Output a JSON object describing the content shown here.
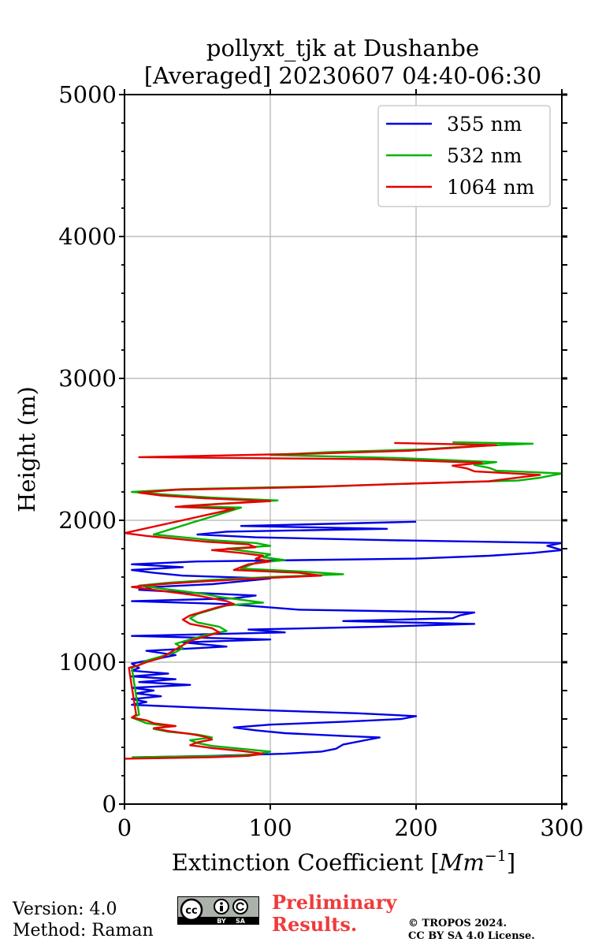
{
  "chart_data": {
    "type": "line",
    "title": "pollyxt_tjk at Dushanbe",
    "subtitle": "[Averaged] 20230607 04:40-06:30",
    "xlabel": "Extinction Coefficient [",
    "xlabel_unit": "Mm",
    "xlabel_exp": "−1",
    "xlabel_end": "]",
    "ylabel": "Height (m)",
    "xlim": [
      0,
      300
    ],
    "ylim": [
      0,
      5000
    ],
    "xticks": [
      0,
      100,
      200,
      300
    ],
    "yticks": [
      0,
      1000,
      2000,
      3000,
      4000,
      5000
    ],
    "xtick_labels": [
      "0",
      "100",
      "200",
      "300"
    ],
    "ytick_labels": [
      "0",
      "1000",
      "2000",
      "3000",
      "4000",
      "5000"
    ],
    "grid": true,
    "legend_position": "top-right",
    "series": [
      {
        "name": "355 nm",
        "color": "#0000e6",
        "points": [
          [
            10,
            330
          ],
          [
            60,
            340
          ],
          [
            110,
            355
          ],
          [
            135,
            370
          ],
          [
            145,
            390
          ],
          [
            150,
            420
          ],
          [
            165,
            450
          ],
          [
            175,
            470
          ],
          [
            150,
            480
          ],
          [
            110,
            500
          ],
          [
            90,
            520
          ],
          [
            75,
            540
          ],
          [
            100,
            560
          ],
          [
            150,
            580
          ],
          [
            190,
            600
          ],
          [
            200,
            620
          ],
          [
            160,
            640
          ],
          [
            100,
            660
          ],
          [
            50,
            680
          ],
          [
            5,
            700
          ],
          [
            15,
            720
          ],
          [
            5,
            740
          ],
          [
            25,
            760
          ],
          [
            8,
            780
          ],
          [
            20,
            800
          ],
          [
            5,
            820
          ],
          [
            45,
            840
          ],
          [
            10,
            860
          ],
          [
            35,
            880
          ],
          [
            5,
            900
          ],
          [
            30,
            920
          ],
          [
            5,
            940
          ],
          [
            10,
            960
          ],
          [
            5,
            990
          ],
          [
            20,
            1020
          ],
          [
            35,
            1050
          ],
          [
            15,
            1080
          ],
          [
            70,
            1110
          ],
          [
            40,
            1140
          ],
          [
            100,
            1160
          ],
          [
            5,
            1185
          ],
          [
            110,
            1210
          ],
          [
            85,
            1230
          ],
          [
            175,
            1250
          ],
          [
            240,
            1270
          ],
          [
            150,
            1290
          ],
          [
            225,
            1310
          ],
          [
            230,
            1330
          ],
          [
            240,
            1350
          ],
          [
            120,
            1370
          ],
          [
            95,
            1390
          ],
          [
            70,
            1410
          ],
          [
            5,
            1430
          ],
          [
            75,
            1450
          ],
          [
            90,
            1470
          ],
          [
            45,
            1490
          ],
          [
            10,
            1510
          ],
          [
            20,
            1530
          ],
          [
            60,
            1550
          ],
          [
            80,
            1570
          ],
          [
            100,
            1590
          ],
          [
            40,
            1610
          ],
          [
            20,
            1630
          ],
          [
            5,
            1650
          ],
          [
            40,
            1670
          ],
          [
            5,
            1690
          ],
          [
            50,
            1710
          ],
          [
            200,
            1730
          ],
          [
            250,
            1750
          ],
          [
            280,
            1770
          ],
          [
            300,
            1790
          ],
          [
            290,
            1820
          ],
          [
            300,
            1840
          ],
          [
            180,
            1860
          ],
          [
            90,
            1880
          ],
          [
            50,
            1900
          ],
          [
            70,
            1920
          ],
          [
            180,
            1940
          ],
          [
            80,
            1960
          ],
          [
            140,
            1975
          ],
          [
            200,
            1990
          ]
        ]
      },
      {
        "name": "532 nm",
        "color": "#00b300",
        "points": [
          [
            5,
            330
          ],
          [
            70,
            340
          ],
          [
            90,
            350
          ],
          [
            100,
            370
          ],
          [
            80,
            390
          ],
          [
            60,
            410
          ],
          [
            50,
            430
          ],
          [
            45,
            450
          ],
          [
            60,
            470
          ],
          [
            50,
            490
          ],
          [
            30,
            510
          ],
          [
            20,
            530
          ],
          [
            30,
            550
          ],
          [
            15,
            570
          ],
          [
            10,
            590
          ],
          [
            5,
            610
          ],
          [
            10,
            630
          ],
          [
            5,
            960
          ],
          [
            10,
            980
          ],
          [
            15,
            1010
          ],
          [
            25,
            1040
          ],
          [
            35,
            1070
          ],
          [
            40,
            1100
          ],
          [
            35,
            1130
          ],
          [
            45,
            1160
          ],
          [
            55,
            1190
          ],
          [
            70,
            1220
          ],
          [
            65,
            1250
          ],
          [
            50,
            1280
          ],
          [
            45,
            1310
          ],
          [
            50,
            1340
          ],
          [
            60,
            1370
          ],
          [
            70,
            1400
          ],
          [
            95,
            1420
          ],
          [
            80,
            1440
          ],
          [
            65,
            1460
          ],
          [
            55,
            1480
          ],
          [
            40,
            1500
          ],
          [
            25,
            1520
          ],
          [
            10,
            1540
          ],
          [
            30,
            1560
          ],
          [
            60,
            1580
          ],
          [
            100,
            1600
          ],
          [
            150,
            1620
          ],
          [
            120,
            1640
          ],
          [
            80,
            1660
          ],
          [
            85,
            1680
          ],
          [
            90,
            1700
          ],
          [
            110,
            1720
          ],
          [
            95,
            1740
          ],
          [
            100,
            1760
          ],
          [
            85,
            1780
          ],
          [
            70,
            1800
          ],
          [
            100,
            1820
          ],
          [
            90,
            1840
          ],
          [
            60,
            1860
          ],
          [
            40,
            1880
          ],
          [
            20,
            1900
          ],
          [
            80,
            2090
          ],
          [
            40,
            2100
          ],
          [
            70,
            2120
          ],
          [
            105,
            2140
          ],
          [
            60,
            2160
          ],
          [
            30,
            2180
          ],
          [
            5,
            2200
          ],
          [
            40,
            2220
          ],
          [
            140,
            2240
          ],
          [
            200,
            2260
          ],
          [
            270,
            2280
          ],
          [
            285,
            2300
          ],
          [
            300,
            2330
          ],
          [
            255,
            2350
          ],
          [
            250,
            2370
          ],
          [
            240,
            2390
          ],
          [
            255,
            2410
          ],
          [
            185,
            2440
          ],
          [
            100,
            2460
          ],
          [
            140,
            2480
          ],
          [
            205,
            2500
          ],
          [
            235,
            2520
          ],
          [
            280,
            2540
          ],
          [
            225,
            2550
          ]
        ]
      },
      {
        "name": "1064 nm",
        "color": "#e60000",
        "points": [
          [
            0,
            320
          ],
          [
            60,
            330
          ],
          [
            85,
            340
          ],
          [
            95,
            355
          ],
          [
            80,
            375
          ],
          [
            60,
            395
          ],
          [
            45,
            415
          ],
          [
            50,
            435
          ],
          [
            60,
            455
          ],
          [
            55,
            475
          ],
          [
            45,
            495
          ],
          [
            30,
            515
          ],
          [
            20,
            535
          ],
          [
            35,
            550
          ],
          [
            20,
            570
          ],
          [
            15,
            590
          ],
          [
            5,
            610
          ],
          [
            8,
            630
          ],
          [
            3,
            960
          ],
          [
            10,
            980
          ],
          [
            15,
            1000
          ],
          [
            25,
            1030
          ],
          [
            30,
            1060
          ],
          [
            35,
            1090
          ],
          [
            40,
            1120
          ],
          [
            45,
            1150
          ],
          [
            55,
            1180
          ],
          [
            65,
            1210
          ],
          [
            60,
            1240
          ],
          [
            45,
            1270
          ],
          [
            40,
            1300
          ],
          [
            45,
            1330
          ],
          [
            55,
            1360
          ],
          [
            65,
            1390
          ],
          [
            75,
            1410
          ],
          [
            70,
            1430
          ],
          [
            60,
            1450
          ],
          [
            50,
            1470
          ],
          [
            35,
            1490
          ],
          [
            20,
            1510
          ],
          [
            5,
            1530
          ],
          [
            25,
            1550
          ],
          [
            55,
            1570
          ],
          [
            90,
            1590
          ],
          [
            135,
            1610
          ],
          [
            120,
            1630
          ],
          [
            75,
            1650
          ],
          [
            80,
            1670
          ],
          [
            85,
            1690
          ],
          [
            100,
            1710
          ],
          [
            90,
            1730
          ],
          [
            95,
            1750
          ],
          [
            80,
            1770
          ],
          [
            60,
            1790
          ],
          [
            90,
            1810
          ],
          [
            85,
            1830
          ],
          [
            55,
            1850
          ],
          [
            35,
            1870
          ],
          [
            15,
            1890
          ],
          [
            0,
            1910
          ],
          [
            75,
            2080
          ],
          [
            35,
            2095
          ],
          [
            65,
            2115
          ],
          [
            100,
            2135
          ],
          [
            55,
            2155
          ],
          [
            25,
            2175
          ],
          [
            10,
            2195
          ],
          [
            35,
            2215
          ],
          [
            130,
            2235
          ],
          [
            185,
            2255
          ],
          [
            250,
            2275
          ],
          [
            265,
            2295
          ],
          [
            285,
            2320
          ],
          [
            240,
            2345
          ],
          [
            235,
            2365
          ],
          [
            225,
            2385
          ],
          [
            245,
            2405
          ],
          [
            175,
            2430
          ],
          [
            10,
            2445
          ],
          [
            130,
            2470
          ],
          [
            195,
            2490
          ],
          [
            225,
            2510
          ],
          [
            255,
            2530
          ],
          [
            185,
            2545
          ]
        ]
      }
    ]
  },
  "footer": {
    "version": "Version: 4.0",
    "method": "Method: Raman",
    "preliminary_line1": "Preliminary",
    "preliminary_line2": "Results.",
    "copyright_line1": "© TROPOS 2024.",
    "copyright_line2": "CC BY SA 4.0 License.",
    "license_badge": {
      "cc": "cc",
      "by": "BY",
      "sa": "SA"
    }
  }
}
